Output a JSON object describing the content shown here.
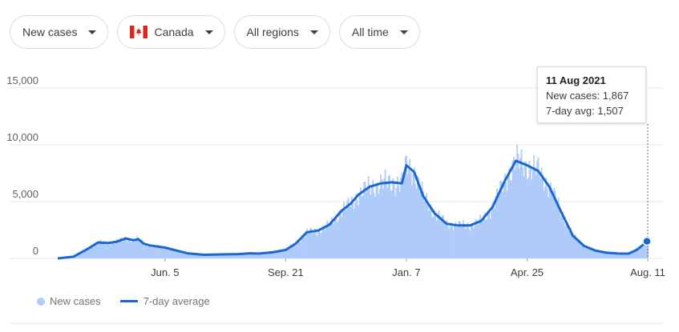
{
  "filters": {
    "metric": "New cases",
    "country": "Canada",
    "region": "All regions",
    "period": "All time"
  },
  "tooltip": {
    "date": "11 Aug 2021",
    "new_cases_label": "New cases: 1,867",
    "avg_label": "7-day avg: 1,507"
  },
  "legend": {
    "new_cases": "New cases",
    "avg": "7-day average"
  },
  "colors": {
    "bars": "#aecbfa",
    "avg_line": "#1967d2",
    "grid": "#e8eaed"
  },
  "chart_data": {
    "type": "area",
    "y_ticks": [
      "0",
      "5,000",
      "10,000",
      "15,000"
    ],
    "y_tick_values": [
      0,
      5000,
      10000,
      15000
    ],
    "ylim": [
      0,
      16000
    ],
    "x_tick_labels": [
      "Jun. 5",
      "Sep. 21",
      "Jan. 7",
      "Apr. 25",
      "Aug. 11"
    ],
    "x_tick_dates": [
      "2020-06-05",
      "2020-09-21",
      "2021-01-07",
      "2021-04-25",
      "2021-08-11"
    ],
    "x_range": [
      "2020-03-01",
      "2021-08-11"
    ],
    "series": [
      {
        "name": "7-day average",
        "points": [
          [
            "2020-03-01",
            0
          ],
          [
            "2020-03-15",
            150
          ],
          [
            "2020-03-29",
            900
          ],
          [
            "2020-04-06",
            1400
          ],
          [
            "2020-04-15",
            1350
          ],
          [
            "2020-04-22",
            1450
          ],
          [
            "2020-05-01",
            1750
          ],
          [
            "2020-05-08",
            1600
          ],
          [
            "2020-05-12",
            1700
          ],
          [
            "2020-05-17",
            1300
          ],
          [
            "2020-05-22",
            1150
          ],
          [
            "2020-06-05",
            950
          ],
          [
            "2020-06-15",
            700
          ],
          [
            "2020-06-25",
            450
          ],
          [
            "2020-07-10",
            320
          ],
          [
            "2020-07-25",
            350
          ],
          [
            "2020-08-10",
            380
          ],
          [
            "2020-08-20",
            450
          ],
          [
            "2020-08-28",
            420
          ],
          [
            "2020-09-10",
            550
          ],
          [
            "2020-09-21",
            750
          ],
          [
            "2020-09-30",
            1300
          ],
          [
            "2020-10-10",
            2300
          ],
          [
            "2020-10-20",
            2450
          ],
          [
            "2020-10-30",
            2950
          ],
          [
            "2020-11-10",
            4200
          ],
          [
            "2020-11-18",
            4800
          ],
          [
            "2020-11-25",
            5600
          ],
          [
            "2020-12-05",
            6300
          ],
          [
            "2020-12-15",
            6600
          ],
          [
            "2020-12-25",
            6700
          ],
          [
            "2021-01-03",
            6600
          ],
          [
            "2021-01-07",
            8200
          ],
          [
            "2021-01-14",
            7600
          ],
          [
            "2021-01-22",
            5500
          ],
          [
            "2021-02-01",
            4000
          ],
          [
            "2021-02-12",
            3050
          ],
          [
            "2021-02-22",
            2900
          ],
          [
            "2021-03-05",
            2900
          ],
          [
            "2021-03-15",
            3300
          ],
          [
            "2021-03-25",
            4500
          ],
          [
            "2021-04-05",
            6800
          ],
          [
            "2021-04-15",
            8600
          ],
          [
            "2021-04-25",
            8200
          ],
          [
            "2021-05-05",
            7700
          ],
          [
            "2021-05-15",
            6300
          ],
          [
            "2021-05-25",
            4200
          ],
          [
            "2021-06-05",
            2000
          ],
          [
            "2021-06-15",
            1100
          ],
          [
            "2021-06-25",
            700
          ],
          [
            "2021-07-05",
            500
          ],
          [
            "2021-07-15",
            430
          ],
          [
            "2021-07-25",
            420
          ],
          [
            "2021-08-01",
            750
          ],
          [
            "2021-08-11",
            1507
          ]
        ]
      }
    ]
  }
}
